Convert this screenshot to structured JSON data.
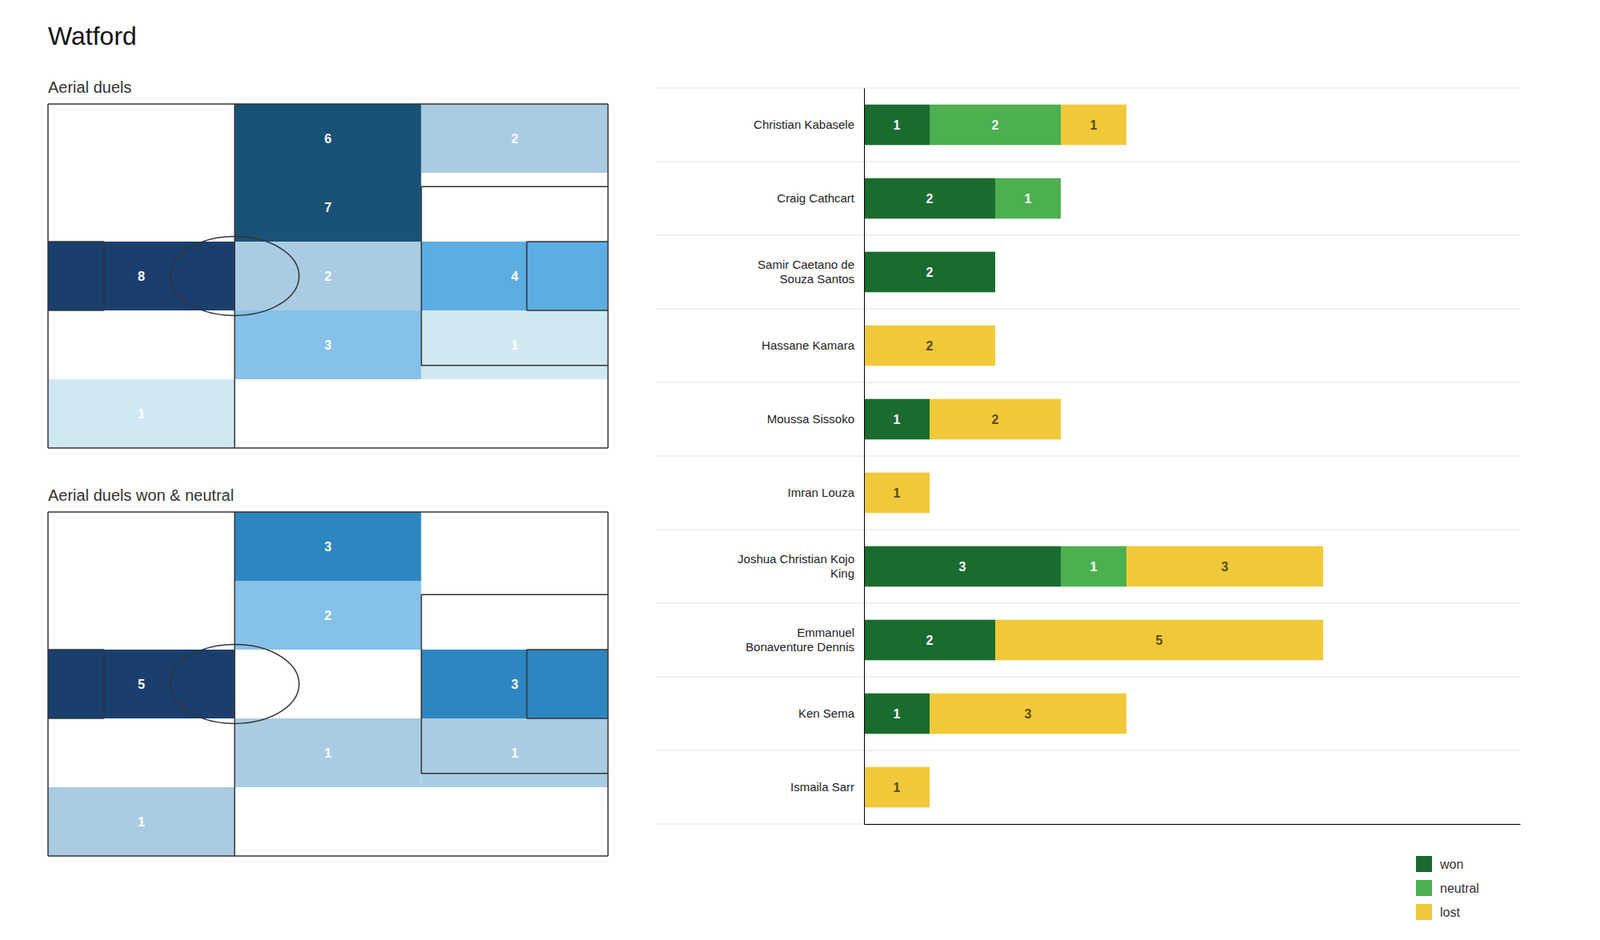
{
  "chart_data": [
    {
      "type": "heatmap",
      "title": "Aerial duels",
      "values": [
        [
          0,
          6,
          2
        ],
        [
          0,
          7,
          0
        ],
        [
          8,
          2,
          4
        ],
        [
          0,
          3,
          1
        ],
        [
          1,
          0,
          0
        ]
      ],
      "colors": [
        [
          "#ffffff",
          "#1a5276",
          "#a9cce3"
        ],
        [
          "#ffffff",
          "#1a5276",
          "#ffffff"
        ],
        [
          "#1a3f6f",
          "#a9cce3",
          "#5dade2"
        ],
        [
          "#ffffff",
          "#85c1e9",
          "#d0e8f1"
        ],
        [
          "#d0e8f1",
          "#ffffff",
          "#ffffff"
        ]
      ],
      "data_labels": true,
      "tick_labels": false,
      "grid": false
    },
    {
      "type": "heatmap",
      "title": "Aerial duels won & neutral",
      "values": [
        [
          0,
          3,
          0
        ],
        [
          0,
          2,
          0
        ],
        [
          5,
          0,
          3
        ],
        [
          0,
          1,
          1
        ],
        [
          1,
          0,
          0
        ]
      ],
      "colors": [
        [
          "#ffffff",
          "#2e86c1",
          "#ffffff"
        ],
        [
          "#ffffff",
          "#85c1e9",
          "#ffffff"
        ],
        [
          "#1a3f6f",
          "#ffffff",
          "#2e86c1"
        ],
        [
          "#ffffff",
          "#a9cce3",
          "#a9cce3"
        ],
        [
          "#a9cce3",
          "#ffffff",
          "#ffffff"
        ]
      ],
      "data_labels": true,
      "tick_labels": false,
      "grid": false
    },
    {
      "type": "bar",
      "title": "Watford",
      "orientation": "horizontal",
      "stacked": true,
      "categories": [
        "Christian Kabasele",
        "Craig Cathcart",
        "Samir Caetano de\nSouza Santos",
        "Hassane Kamara",
        "Moussa Sissoko",
        "Imran Louza",
        "Joshua Christian Kojo\nKing",
        "Emmanuel\nBonaventure Dennis",
        "Ken Sema",
        "Ismaila Sarr"
      ],
      "series": [
        {
          "name": "won",
          "color": "#1a6b2f",
          "values": [
            1,
            2,
            2,
            0,
            1,
            0,
            3,
            2,
            1,
            0
          ]
        },
        {
          "name": "neutral",
          "color": "#4caf50",
          "values": [
            2,
            1,
            0,
            0,
            0,
            0,
            1,
            0,
            0,
            0
          ]
        },
        {
          "name": "lost",
          "color": "#f0c93a",
          "values": [
            1,
            0,
            0,
            2,
            2,
            1,
            3,
            5,
            3,
            1
          ]
        }
      ],
      "xlim": [
        0,
        10
      ],
      "tick_labels": "y",
      "data_labels": true,
      "legend": "lower right",
      "grid": false
    }
  ]
}
